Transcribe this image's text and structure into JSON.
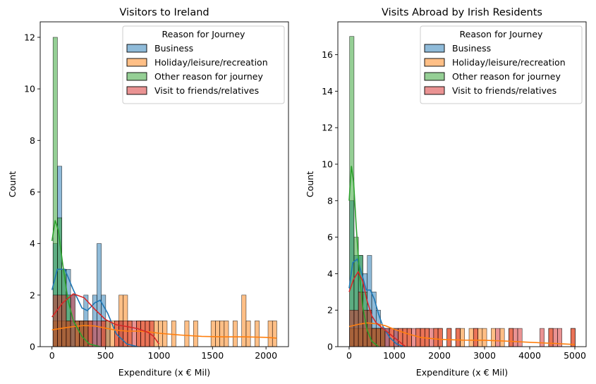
{
  "chart_data": [
    {
      "type": "histogram",
      "title": "Visitors to Ireland",
      "xlabel": "Expenditure (x € Mil)",
      "ylabel": "Count",
      "xlim": [
        -110,
        2210
      ],
      "ylim": [
        0,
        12.6
      ],
      "xticks": [
        0,
        500,
        1000,
        1500,
        2000
      ],
      "yticks": [
        0,
        2,
        4,
        6,
        8,
        10,
        12
      ],
      "grid": false,
      "bin_width": 41,
      "bin_start": 10,
      "kde": true,
      "legend": {
        "title": "Reason for Journey",
        "placement": "top-right",
        "entries": [
          "Business",
          "Holiday/leisure/recreation",
          "Other reason for journey",
          "Visit to friends/relatives"
        ]
      },
      "series": [
        {
          "name": "Business",
          "color": "#1f77b4",
          "bins": [
            [
              0,
              4
            ],
            [
              1,
              7
            ],
            [
              2,
              3
            ],
            [
              3,
              3
            ],
            [
              4,
              2
            ],
            [
              6,
              1
            ],
            [
              7,
              2
            ],
            [
              8,
              1
            ],
            [
              9,
              2
            ],
            [
              10,
              4
            ],
            [
              11,
              2
            ],
            [
              12,
              1
            ],
            [
              15,
              1
            ]
          ],
          "kde": [
            [
              0,
              2.2
            ],
            [
              50,
              3.0
            ],
            [
              120,
              3.0
            ],
            [
              200,
              2.2
            ],
            [
              280,
              1.5
            ],
            [
              330,
              1.4
            ],
            [
              400,
              1.7
            ],
            [
              450,
              1.8
            ],
            [
              520,
              1.3
            ],
            [
              600,
              0.5
            ],
            [
              700,
              0.1
            ],
            [
              800,
              0
            ]
          ]
        },
        {
          "name": "Holiday/leisure/recreation",
          "color": "#ff7f0e",
          "bins": [
            [
              0,
              1
            ],
            [
              1,
              1
            ],
            [
              2,
              1
            ],
            [
              3,
              1
            ],
            [
              5,
              1
            ],
            [
              6,
              1
            ],
            [
              7,
              1
            ],
            [
              8,
              1
            ],
            [
              11,
              1
            ],
            [
              12,
              1
            ],
            [
              13,
              1
            ],
            [
              14,
              1
            ],
            [
              15,
              2
            ],
            [
              16,
              2
            ],
            [
              17,
              1
            ],
            [
              19,
              1
            ],
            [
              20,
              1
            ],
            [
              21,
              1
            ],
            [
              22,
              1
            ],
            [
              23,
              1
            ],
            [
              24,
              1
            ],
            [
              25,
              1
            ],
            [
              27,
              1
            ],
            [
              30,
              1
            ],
            [
              32,
              1
            ],
            [
              36,
              1
            ],
            [
              37,
              1
            ],
            [
              38,
              1
            ],
            [
              39,
              1
            ],
            [
              41,
              1
            ],
            [
              43,
              2
            ],
            [
              44,
              1
            ],
            [
              46,
              1
            ],
            [
              49,
              1
            ],
            [
              50,
              1
            ]
          ],
          "kde": [
            [
              0,
              0.65
            ],
            [
              100,
              0.72
            ],
            [
              200,
              0.78
            ],
            [
              300,
              0.82
            ],
            [
              400,
              0.8
            ],
            [
              500,
              0.72
            ],
            [
              600,
              0.64
            ],
            [
              700,
              0.6
            ],
            [
              800,
              0.6
            ],
            [
              900,
              0.58
            ],
            [
              1000,
              0.52
            ],
            [
              1200,
              0.45
            ],
            [
              1400,
              0.4
            ],
            [
              1600,
              0.38
            ],
            [
              1800,
              0.38
            ],
            [
              2000,
              0.36
            ],
            [
              2100,
              0.33
            ]
          ]
        },
        {
          "name": "Other reason for journey",
          "color": "#2ca02c",
          "bins": [
            [
              0,
              12
            ],
            [
              1,
              5
            ],
            [
              2,
              3
            ],
            [
              3,
              2
            ],
            [
              4,
              1
            ],
            [
              5,
              1
            ],
            [
              6,
              1
            ],
            [
              7,
              1
            ]
          ],
          "kde": [
            [
              0,
              4.1
            ],
            [
              30,
              4.9
            ],
            [
              60,
              4.5
            ],
            [
              100,
              3.2
            ],
            [
              150,
              1.8
            ],
            [
              200,
              1.0
            ],
            [
              280,
              0.4
            ],
            [
              350,
              0.1
            ],
            [
              450,
              0
            ]
          ]
        },
        {
          "name": "Visit to friends/relatives",
          "color": "#d62728",
          "bins": [
            [
              0,
              2
            ],
            [
              1,
              2
            ],
            [
              2,
              2
            ],
            [
              3,
              1
            ],
            [
              4,
              2
            ],
            [
              5,
              1
            ],
            [
              6,
              1
            ],
            [
              7,
              1
            ],
            [
              8,
              1
            ],
            [
              9,
              1
            ],
            [
              10,
              1
            ],
            [
              11,
              1
            ],
            [
              14,
              1
            ],
            [
              15,
              1
            ],
            [
              16,
              1
            ],
            [
              17,
              1
            ],
            [
              18,
              1
            ],
            [
              19,
              1
            ],
            [
              20,
              1
            ],
            [
              21,
              1
            ],
            [
              22,
              1
            ]
          ],
          "kde": [
            [
              0,
              1.15
            ],
            [
              100,
              1.7
            ],
            [
              200,
              2.05
            ],
            [
              300,
              1.9
            ],
            [
              400,
              1.45
            ],
            [
              500,
              1.05
            ],
            [
              600,
              0.85
            ],
            [
              700,
              0.78
            ],
            [
              800,
              0.7
            ],
            [
              900,
              0.55
            ],
            [
              950,
              0.4
            ],
            [
              1000,
              0.1
            ]
          ]
        }
      ]
    },
    {
      "type": "histogram",
      "title": "Visits Abroad by Irish Residents",
      "xlabel": "Expenditure (x € Mil)",
      "ylabel": "Count",
      "xlim": [
        -250,
        5250
      ],
      "ylim": [
        0,
        17.8
      ],
      "xticks": [
        0,
        1000,
        2000,
        3000,
        4000,
        5000
      ],
      "yticks": [
        0,
        2,
        4,
        6,
        8,
        10,
        12,
        14,
        16
      ],
      "grid": false,
      "bin_width": 98,
      "bin_start": 10,
      "kde": true,
      "legend": {
        "title": "Reason for Journey",
        "placement": "top-right",
        "entries": [
          "Business",
          "Holiday/leisure/recreation",
          "Other reason for journey",
          "Visit to friends/relatives"
        ]
      },
      "series": [
        {
          "name": "Business",
          "color": "#1f77b4",
          "bins": [
            [
              0,
              8
            ],
            [
              1,
              5
            ],
            [
              2,
              5
            ],
            [
              3,
              4
            ],
            [
              4,
              5
            ],
            [
              5,
              3
            ],
            [
              6,
              2
            ],
            [
              7,
              1
            ],
            [
              8,
              1
            ],
            [
              10,
              1
            ]
          ],
          "kde": [
            [
              0,
              3.2
            ],
            [
              80,
              4.6
            ],
            [
              180,
              4.8
            ],
            [
              280,
              4.0
            ],
            [
              380,
              3.1
            ],
            [
              470,
              3.1
            ],
            [
              560,
              2.6
            ],
            [
              650,
              1.8
            ],
            [
              750,
              1.1
            ],
            [
              900,
              0.5
            ],
            [
              1050,
              0.15
            ],
            [
              1200,
              0
            ]
          ]
        },
        {
          "name": "Holiday/leisure/recreation",
          "color": "#ff7f0e",
          "bins": [
            [
              0,
              1
            ],
            [
              1,
              1
            ],
            [
              2,
              1
            ],
            [
              3,
              1
            ],
            [
              4,
              1
            ],
            [
              5,
              1
            ],
            [
              6,
              1
            ],
            [
              7,
              1
            ],
            [
              9,
              1
            ],
            [
              11,
              1
            ],
            [
              12,
              1
            ],
            [
              13,
              1
            ],
            [
              15,
              1
            ],
            [
              16,
              1
            ],
            [
              17,
              1
            ],
            [
              19,
              1
            ],
            [
              20,
              1
            ],
            [
              22,
              1
            ],
            [
              24,
              1
            ],
            [
              25,
              1
            ],
            [
              27,
              1
            ],
            [
              28,
              1
            ],
            [
              29,
              1
            ],
            [
              30,
              1
            ],
            [
              32,
              1
            ],
            [
              34,
              1
            ],
            [
              36,
              1
            ],
            [
              45,
              1
            ],
            [
              50,
              1
            ]
          ],
          "kde": [
            [
              0,
              1.1
            ],
            [
              200,
              1.22
            ],
            [
              400,
              1.3
            ],
            [
              600,
              1.25
            ],
            [
              800,
              1.15
            ],
            [
              1000,
              0.95
            ],
            [
              1300,
              0.7
            ],
            [
              1600,
              0.5
            ],
            [
              2000,
              0.4
            ],
            [
              2500,
              0.36
            ],
            [
              3000,
              0.35
            ],
            [
              3500,
              0.3
            ],
            [
              4000,
              0.24
            ],
            [
              4500,
              0.18
            ],
            [
              5000,
              0.12
            ]
          ]
        },
        {
          "name": "Other reason for journey",
          "color": "#2ca02c",
          "bins": [
            [
              0,
              17
            ],
            [
              1,
              6
            ],
            [
              2,
              5
            ],
            [
              3,
              3
            ],
            [
              4,
              2
            ],
            [
              5,
              1
            ],
            [
              6,
              1
            ],
            [
              7,
              1
            ]
          ],
          "kde": [
            [
              0,
              8.0
            ],
            [
              50,
              9.9
            ],
            [
              100,
              9.0
            ],
            [
              160,
              6.5
            ],
            [
              230,
              4.0
            ],
            [
              300,
              2.2
            ],
            [
              400,
              0.9
            ],
            [
              500,
              0.3
            ],
            [
              650,
              0
            ]
          ]
        },
        {
          "name": "Visit to friends/relatives",
          "color": "#d62728",
          "bins": [
            [
              0,
              2
            ],
            [
              1,
              2
            ],
            [
              2,
              3
            ],
            [
              3,
              2
            ],
            [
              4,
              2
            ],
            [
              5,
              1
            ],
            [
              6,
              1
            ],
            [
              7,
              1
            ],
            [
              8,
              1
            ],
            [
              9,
              1
            ],
            [
              10,
              1
            ],
            [
              11,
              1
            ],
            [
              12,
              1
            ],
            [
              13,
              1
            ],
            [
              14,
              1
            ],
            [
              15,
              1
            ],
            [
              16,
              1
            ],
            [
              17,
              1
            ],
            [
              18,
              1
            ],
            [
              19,
              1
            ],
            [
              20,
              1
            ],
            [
              22,
              1
            ],
            [
              24,
              1
            ],
            [
              28,
              1
            ],
            [
              33,
              1
            ],
            [
              36,
              1
            ],
            [
              37,
              1
            ],
            [
              38,
              1
            ],
            [
              43,
              1
            ],
            [
              45,
              1
            ],
            [
              46,
              1
            ],
            [
              47,
              1
            ],
            [
              50,
              1
            ]
          ],
          "kde": [
            [
              0,
              3.0
            ],
            [
              100,
              3.7
            ],
            [
              200,
              4.1
            ],
            [
              300,
              3.6
            ],
            [
              400,
              2.5
            ],
            [
              500,
              1.7
            ],
            [
              600,
              1.3
            ],
            [
              700,
              1.1
            ],
            [
              800,
              0.9
            ],
            [
              900,
              0.7
            ],
            [
              1000,
              0.5
            ],
            [
              1100,
              0.3
            ],
            [
              1200,
              0.1
            ],
            [
              1250,
              0
            ]
          ]
        }
      ]
    }
  ]
}
